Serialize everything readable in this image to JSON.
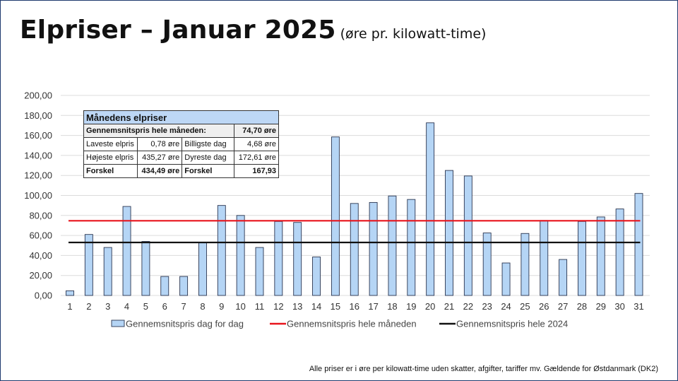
{
  "title": {
    "main": "Elpriser – Januar 2025",
    "sub": "(øre pr. kilowatt-time)"
  },
  "summary_table": {
    "header": "Månedens elpriser",
    "avg_label": "Gennemsnitspris hele måneden:",
    "avg_value": "74,70 øre",
    "rows": [
      {
        "l1": "Laveste elpris",
        "v1": "0,78 øre",
        "l2": "Billigste dag",
        "v2": "4,68 øre"
      },
      {
        "l1": "Højeste elpris",
        "v1": "435,27 øre",
        "l2": "Dyreste dag",
        "v2": "172,61 øre"
      },
      {
        "l1": "Forskel",
        "v1": "434,49 øre",
        "l2": "Forskel",
        "v2": "167,93"
      }
    ]
  },
  "footnote": "Alle priser er i øre per kilowatt-time uden skatter, afgifter, tariffer mv. Gældende for Østdanmark (DK2)",
  "colors": {
    "bar_fill": "#b5d5f5",
    "bar_stroke": "#2a3550",
    "month_avg_line": "#e8141c",
    "year_avg_line": "#111111",
    "grid": "#dcdcdc",
    "frame": "#1f3a6e"
  },
  "chart_data": {
    "type": "bar",
    "categories": [
      "1",
      "2",
      "3",
      "4",
      "5",
      "6",
      "7",
      "8",
      "9",
      "10",
      "11",
      "12",
      "13",
      "14",
      "15",
      "16",
      "17",
      "18",
      "19",
      "20",
      "21",
      "22",
      "23",
      "24",
      "25",
      "26",
      "27",
      "28",
      "29",
      "30",
      "31"
    ],
    "series": [
      {
        "name": "Gennemsnitspris dag for dag",
        "values": [
          4.68,
          61,
          48,
          89,
          54,
          19,
          19,
          53,
          90,
          80,
          48,
          74,
          73,
          38.5,
          158.5,
          92,
          93,
          99.5,
          96,
          172.61,
          125,
          119.5,
          62.5,
          32.5,
          62,
          75,
          36,
          74,
          78.5,
          86.5,
          102
        ]
      }
    ],
    "reference_lines": [
      {
        "name": "Gennemsnitspris hele måneden",
        "value": 74.7,
        "color": "#e8141c"
      },
      {
        "name": "Gennemsnitspris hele 2024",
        "value": 53,
        "color": "#111111"
      }
    ],
    "yticks": [
      "0,00",
      "20,00",
      "40,00",
      "60,00",
      "80,00",
      "100,00",
      "120,00",
      "140,00",
      "160,00",
      "180,00",
      "200,00"
    ],
    "ylim": [
      0,
      200
    ],
    "grid": true,
    "legend": {
      "placement": "bottom",
      "entries": [
        "Gennemsnitspris dag for dag",
        "Gennemsnitspris hele måneden",
        "Gennemsnitspris hele 2024"
      ]
    }
  }
}
